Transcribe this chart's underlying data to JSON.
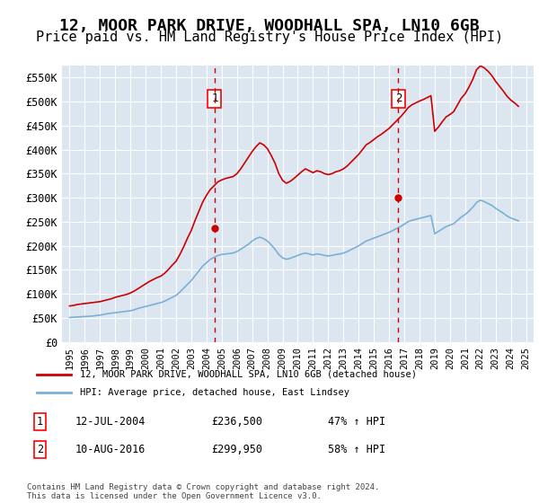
{
  "title": "12, MOOR PARK DRIVE, WOODHALL SPA, LN10 6GB",
  "subtitle": "Price paid vs. HM Land Registry's House Price Index (HPI)",
  "title_fontsize": 13,
  "subtitle_fontsize": 11,
  "background_color": "#ffffff",
  "plot_bg_color": "#dce6f1",
  "grid_color": "#ffffff",
  "red_color": "#cc0000",
  "blue_color": "#7ab0d4",
  "ylim": [
    0,
    575000
  ],
  "yticks": [
    0,
    50000,
    100000,
    150000,
    200000,
    250000,
    300000,
    350000,
    400000,
    450000,
    500000,
    550000
  ],
  "ytick_labels": [
    "£0",
    "£50K",
    "£100K",
    "£150K",
    "£200K",
    "£250K",
    "£300K",
    "£350K",
    "£400K",
    "£450K",
    "£500K",
    "£550K"
  ],
  "xlim_start": 1994.5,
  "xlim_end": 2025.5,
  "xticks": [
    1995,
    1996,
    1997,
    1998,
    1999,
    2000,
    2001,
    2002,
    2003,
    2004,
    2005,
    2006,
    2007,
    2008,
    2009,
    2010,
    2011,
    2012,
    2013,
    2014,
    2015,
    2016,
    2017,
    2018,
    2019,
    2020,
    2021,
    2022,
    2023,
    2024,
    2025
  ],
  "sale1_x": 2004.53,
  "sale1_y": 236500,
  "sale1_label": "1",
  "sale1_date": "12-JUL-2004",
  "sale1_price": "£236,500",
  "sale1_hpi": "47% ↑ HPI",
  "sale2_x": 2016.61,
  "sale2_y": 299950,
  "sale2_label": "2",
  "sale2_date": "10-AUG-2016",
  "sale2_price": "£299,950",
  "sale2_hpi": "58% ↑ HPI",
  "legend_line1": "12, MOOR PARK DRIVE, WOODHALL SPA, LN10 6GB (detached house)",
  "legend_line2": "HPI: Average price, detached house, East Lindsey",
  "footer": "Contains HM Land Registry data © Crown copyright and database right 2024.\nThis data is licensed under the Open Government Licence v3.0.",
  "hpi_data": {
    "years": [
      1995.0,
      1995.25,
      1995.5,
      1995.75,
      1996.0,
      1996.25,
      1996.5,
      1996.75,
      1997.0,
      1997.25,
      1997.5,
      1997.75,
      1998.0,
      1998.25,
      1998.5,
      1998.75,
      1999.0,
      1999.25,
      1999.5,
      1999.75,
      2000.0,
      2000.25,
      2000.5,
      2000.75,
      2001.0,
      2001.25,
      2001.5,
      2001.75,
      2002.0,
      2002.25,
      2002.5,
      2002.75,
      2003.0,
      2003.25,
      2003.5,
      2003.75,
      2004.0,
      2004.25,
      2004.5,
      2004.75,
      2005.0,
      2005.25,
      2005.5,
      2005.75,
      2006.0,
      2006.25,
      2006.5,
      2006.75,
      2007.0,
      2007.25,
      2007.5,
      2007.75,
      2008.0,
      2008.25,
      2008.5,
      2008.75,
      2009.0,
      2009.25,
      2009.5,
      2009.75,
      2010.0,
      2010.25,
      2010.5,
      2010.75,
      2011.0,
      2011.25,
      2011.5,
      2011.75,
      2012.0,
      2012.25,
      2012.5,
      2012.75,
      2013.0,
      2013.25,
      2013.5,
      2013.75,
      2014.0,
      2014.25,
      2014.5,
      2014.75,
      2015.0,
      2015.25,
      2015.5,
      2015.75,
      2016.0,
      2016.25,
      2016.5,
      2016.75,
      2017.0,
      2017.25,
      2017.5,
      2017.75,
      2018.0,
      2018.25,
      2018.5,
      2018.75,
      2019.0,
      2019.25,
      2019.5,
      2019.75,
      2020.0,
      2020.25,
      2020.5,
      2020.75,
      2021.0,
      2021.25,
      2021.5,
      2021.75,
      2022.0,
      2022.25,
      2022.5,
      2022.75,
      2023.0,
      2023.25,
      2023.5,
      2023.75,
      2024.0,
      2024.25,
      2024.5
    ],
    "values": [
      51000,
      51500,
      52000,
      52500,
      53000,
      53500,
      54000,
      55000,
      56000,
      57500,
      59000,
      60000,
      61000,
      62000,
      63000,
      64000,
      65000,
      67000,
      70000,
      72000,
      74000,
      76000,
      78000,
      80000,
      82000,
      85000,
      89000,
      93000,
      97000,
      104000,
      112000,
      120000,
      128000,
      138000,
      148000,
      158000,
      165000,
      172000,
      176000,
      180000,
      182000,
      183000,
      184000,
      185000,
      188000,
      193000,
      198000,
      203000,
      210000,
      215000,
      218000,
      215000,
      210000,
      202000,
      193000,
      182000,
      175000,
      172000,
      174000,
      177000,
      180000,
      183000,
      185000,
      183000,
      181000,
      183000,
      182000,
      180000,
      179000,
      180000,
      182000,
      183000,
      185000,
      188000,
      192000,
      196000,
      200000,
      205000,
      210000,
      213000,
      216000,
      219000,
      222000,
      225000,
      228000,
      232000,
      236000,
      240000,
      245000,
      250000,
      253000,
      255000,
      257000,
      259000,
      261000,
      263000,
      225000,
      230000,
      235000,
      240000,
      243000,
      246000,
      253000,
      260000,
      265000,
      272000,
      280000,
      290000,
      295000,
      292000,
      288000,
      284000,
      278000,
      273000,
      268000,
      262000,
      258000,
      255000,
      252000
    ]
  },
  "price_data": {
    "years": [
      1995.0,
      1995.25,
      1995.5,
      1995.75,
      1996.0,
      1996.25,
      1996.5,
      1996.75,
      1997.0,
      1997.25,
      1997.5,
      1997.75,
      1998.0,
      1998.25,
      1998.5,
      1998.75,
      1999.0,
      1999.25,
      1999.5,
      1999.75,
      2000.0,
      2000.25,
      2000.5,
      2000.75,
      2001.0,
      2001.25,
      2001.5,
      2001.75,
      2002.0,
      2002.25,
      2002.5,
      2002.75,
      2003.0,
      2003.25,
      2003.5,
      2003.75,
      2004.0,
      2004.25,
      2004.5,
      2004.75,
      2005.0,
      2005.25,
      2005.5,
      2005.75,
      2006.0,
      2006.25,
      2006.5,
      2006.75,
      2007.0,
      2007.25,
      2007.5,
      2007.75,
      2008.0,
      2008.25,
      2008.5,
      2008.75,
      2009.0,
      2009.25,
      2009.5,
      2009.75,
      2010.0,
      2010.25,
      2010.5,
      2010.75,
      2011.0,
      2011.25,
      2011.5,
      2011.75,
      2012.0,
      2012.25,
      2012.5,
      2012.75,
      2013.0,
      2013.25,
      2013.5,
      2013.75,
      2014.0,
      2014.25,
      2014.5,
      2014.75,
      2015.0,
      2015.25,
      2015.5,
      2015.75,
      2016.0,
      2016.25,
      2016.5,
      2016.75,
      2017.0,
      2017.25,
      2017.5,
      2017.75,
      2018.0,
      2018.25,
      2018.5,
      2018.75,
      2019.0,
      2019.25,
      2019.5,
      2019.75,
      2020.0,
      2020.25,
      2020.5,
      2020.75,
      2021.0,
      2021.25,
      2021.5,
      2021.75,
      2022.0,
      2022.25,
      2022.5,
      2022.75,
      2023.0,
      2023.25,
      2023.5,
      2023.75,
      2024.0,
      2024.25,
      2024.5
    ],
    "values": [
      75000,
      76000,
      78000,
      79000,
      80000,
      81000,
      82000,
      83000,
      84000,
      86000,
      88000,
      90000,
      93000,
      95000,
      97000,
      99000,
      102000,
      106000,
      111000,
      116000,
      121000,
      126000,
      130000,
      134000,
      137000,
      143000,
      151000,
      160000,
      168000,
      182000,
      198000,
      216000,
      232000,
      253000,
      272000,
      291000,
      305000,
      317000,
      325000,
      333000,
      337000,
      340000,
      342000,
      344000,
      350000,
      360000,
      372000,
      384000,
      396000,
      406000,
      414000,
      410000,
      402000,
      388000,
      372000,
      350000,
      336000,
      330000,
      334000,
      340000,
      347000,
      354000,
      360000,
      356000,
      352000,
      356000,
      354000,
      350000,
      348000,
      350000,
      354000,
      356000,
      360000,
      366000,
      374000,
      382000,
      390000,
      400000,
      410000,
      415000,
      421000,
      427000,
      432000,
      438000,
      444000,
      452000,
      460000,
      468000,
      477000,
      487000,
      493000,
      497000,
      501000,
      504000,
      508000,
      512000,
      438000,
      447000,
      458000,
      468000,
      473000,
      479000,
      493000,
      507000,
      516000,
      530000,
      546000,
      566000,
      574000,
      570000,
      563000,
      554000,
      542000,
      532000,
      522000,
      511000,
      503000,
      497000,
      490000
    ]
  }
}
